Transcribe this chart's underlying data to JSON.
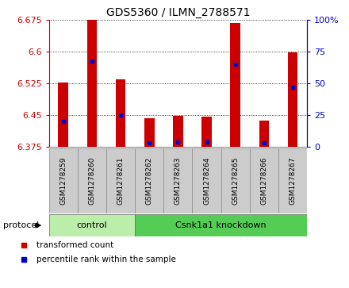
{
  "title": "GDS5360 / ILMN_2788571",
  "samples": [
    "GSM1278259",
    "GSM1278260",
    "GSM1278261",
    "GSM1278262",
    "GSM1278263",
    "GSM1278264",
    "GSM1278265",
    "GSM1278266",
    "GSM1278267"
  ],
  "transformed_counts": [
    6.527,
    6.675,
    6.535,
    6.443,
    6.448,
    6.447,
    6.668,
    6.438,
    6.598
  ],
  "percentile_ranks": [
    20,
    68,
    25,
    3,
    4,
    4,
    65,
    3,
    47
  ],
  "ylim_left": [
    6.375,
    6.675
  ],
  "ylim_right": [
    0,
    100
  ],
  "yticks_left": [
    6.375,
    6.45,
    6.525,
    6.6,
    6.675
  ],
  "yticks_right": [
    0,
    25,
    50,
    75,
    100
  ],
  "bar_color": "#cc0000",
  "marker_color": "#0000cc",
  "bar_bottom": 6.375,
  "groups": [
    {
      "label": "control",
      "start": 0,
      "end": 3
    },
    {
      "label": "Csnk1a1 knockdown",
      "start": 3,
      "end": 9
    }
  ],
  "legend_items": [
    {
      "label": "transformed count",
      "color": "#cc0000"
    },
    {
      "label": "percentile rank within the sample",
      "color": "#0000cc"
    }
  ],
  "protocol_label": "protocol",
  "ctrl_color": "#bbeeaa",
  "kd_color": "#55cc55",
  "sample_box_color": "#cccccc",
  "plot_bg": "#ffffff",
  "bar_width": 0.35
}
